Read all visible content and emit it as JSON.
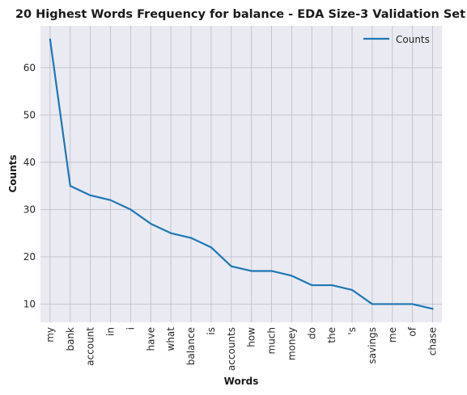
{
  "chart_data": {
    "type": "line",
    "title": "20 Highest Words Frequency for balance - EDA Size-3 Validation Set",
    "xlabel": "Words",
    "ylabel": "Counts",
    "categories": [
      "my",
      "bank",
      "account",
      "in",
      "i",
      "have",
      "what",
      "balance",
      "is",
      "accounts",
      "how",
      "much",
      "money",
      "do",
      "the",
      "'s",
      "savings",
      "me",
      "of",
      "chase"
    ],
    "series": [
      {
        "name": "Counts",
        "values": [
          66,
          35,
          33,
          32,
          30,
          27,
          25,
          24,
          22,
          18,
          17,
          17,
          16,
          14,
          14,
          13,
          10,
          10,
          10,
          9
        ],
        "color": "#1f77b4"
      }
    ],
    "yticks": [
      10,
      20,
      30,
      40,
      50,
      60
    ],
    "ylim": [
      6.15,
      68.85
    ],
    "grid": true,
    "legend_position": "top-right",
    "background_color": "#eaeaf2",
    "grid_color": "#c0c0c8"
  }
}
